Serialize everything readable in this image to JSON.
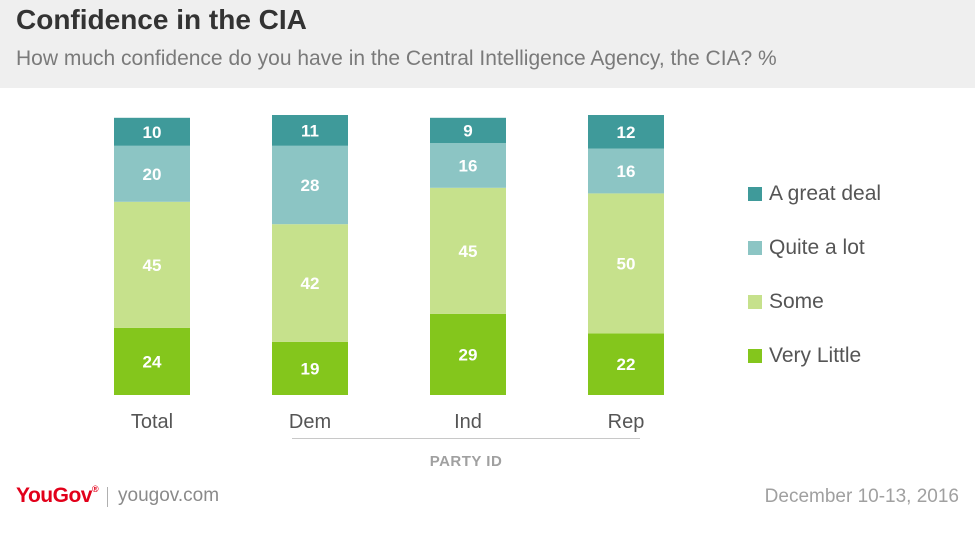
{
  "header": {
    "title": "Confidence in the CIA",
    "subtitle": "How much confidence do you have in the Central Intelligence Agency, the CIA? %"
  },
  "colors": {
    "a_great_deal": "#3f9a9a",
    "quite_a_lot": "#8cc5c4",
    "some": "#c6e18c",
    "very_little": "#84c61c",
    "header_bg": "#efefef",
    "brand": "#e2001a"
  },
  "chart_data": {
    "type": "bar",
    "stacked": true,
    "categories": [
      "Total",
      "Dem",
      "Ind",
      "Rep"
    ],
    "series": [
      {
        "name": "Very Little",
        "values": [
          24,
          19,
          29,
          22
        ]
      },
      {
        "name": "Some",
        "values": [
          45,
          42,
          45,
          50
        ]
      },
      {
        "name": "Quite a lot",
        "values": [
          20,
          28,
          16,
          16
        ]
      },
      {
        "name": "A great deal",
        "values": [
          10,
          11,
          9,
          12
        ]
      }
    ],
    "legend_order": [
      "A great deal",
      "Quite a lot",
      "Some",
      "Very Little"
    ],
    "legend_position": "right",
    "group_label": "PARTY ID",
    "group_categories": [
      "Dem",
      "Ind",
      "Rep"
    ],
    "grid": false,
    "value_labels": true
  },
  "footer": {
    "logo_text": "YouGov",
    "logo_mark": "®",
    "website": "yougov.com",
    "date": "December 10-13, 2016"
  }
}
